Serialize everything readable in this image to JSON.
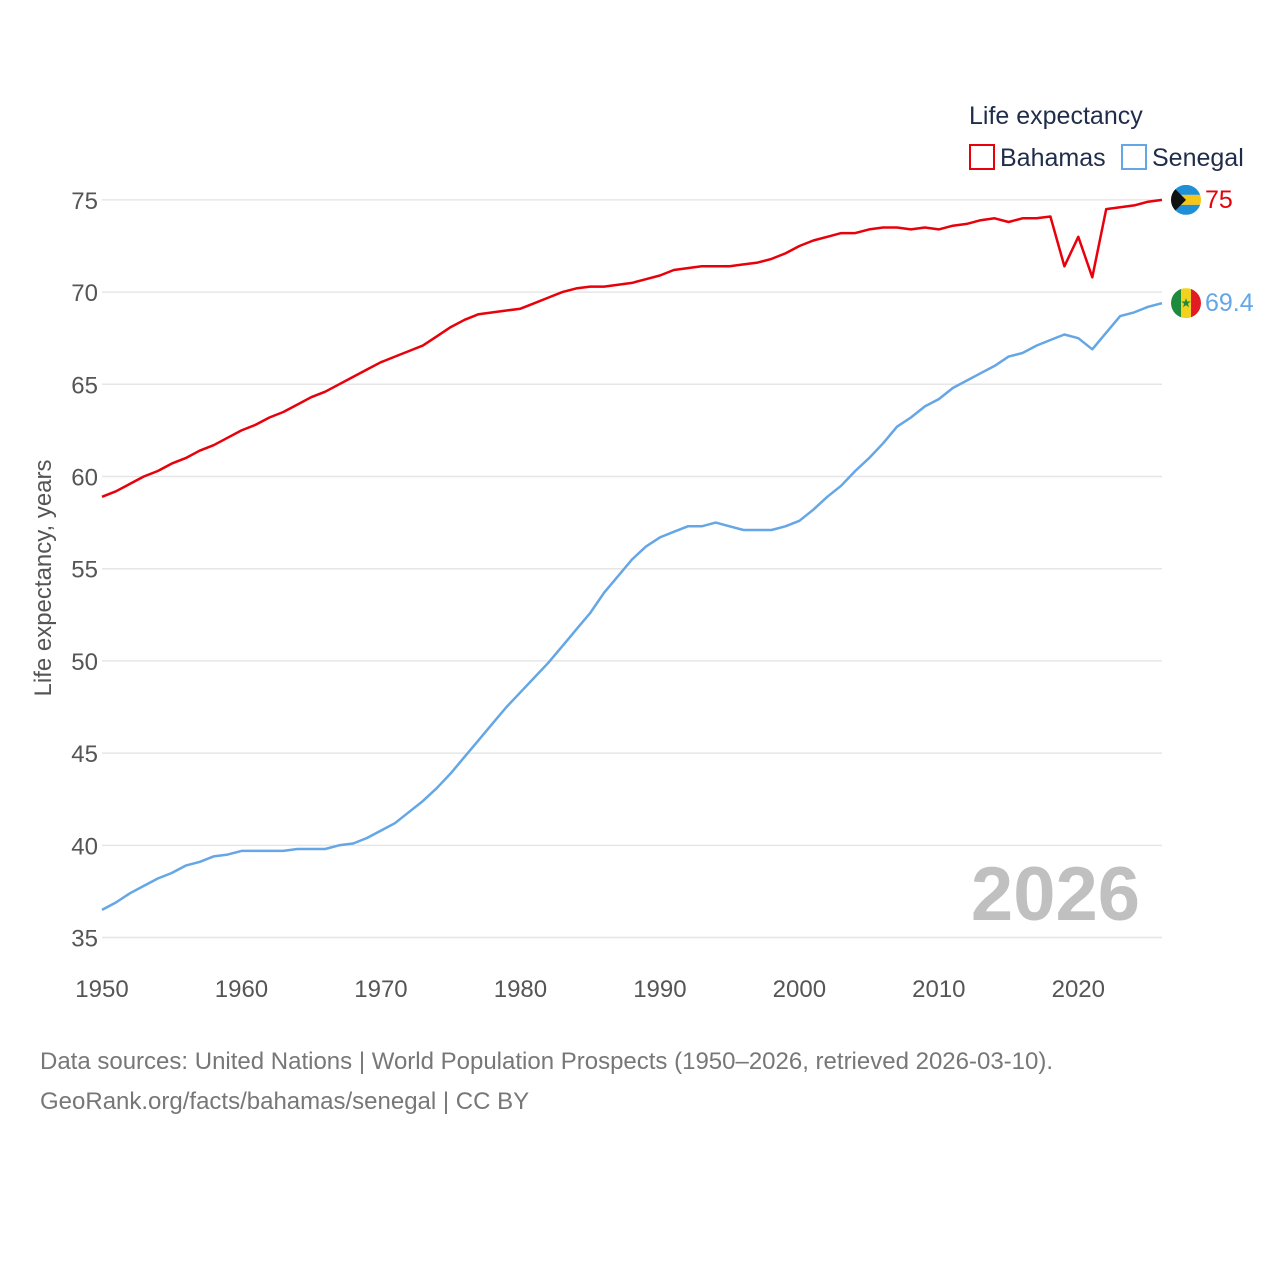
{
  "chart_data": {
    "type": "line",
    "title": "Life expectancy",
    "xlabel": "",
    "ylabel": "Life expectancy, years",
    "xlim": [
      1950,
      2026
    ],
    "ylim": [
      34,
      77
    ],
    "yticks": [
      35,
      40,
      45,
      50,
      55,
      60,
      65,
      70,
      75
    ],
    "xticks": [
      1950,
      1960,
      1970,
      1980,
      1990,
      2000,
      2010,
      2020
    ],
    "current_year": "2026",
    "legend_position": "top-right",
    "x": [
      1950,
      1951,
      1952,
      1953,
      1954,
      1955,
      1956,
      1957,
      1958,
      1959,
      1960,
      1961,
      1962,
      1963,
      1964,
      1965,
      1966,
      1967,
      1968,
      1969,
      1970,
      1971,
      1972,
      1973,
      1974,
      1975,
      1976,
      1977,
      1978,
      1979,
      1980,
      1981,
      1982,
      1983,
      1984,
      1985,
      1986,
      1987,
      1988,
      1989,
      1990,
      1991,
      1992,
      1993,
      1994,
      1995,
      1996,
      1997,
      1998,
      1999,
      2000,
      2001,
      2002,
      2003,
      2004,
      2005,
      2006,
      2007,
      2008,
      2009,
      2010,
      2011,
      2012,
      2013,
      2014,
      2015,
      2016,
      2017,
      2018,
      2019,
      2020,
      2021,
      2022,
      2023,
      2024,
      2025,
      2026
    ],
    "series": [
      {
        "name": "Bahamas",
        "color": "#e8000b",
        "end_label": "75",
        "flag": "bahamas-flag-icon",
        "values": [
          58.9,
          59.2,
          59.6,
          60.0,
          60.3,
          60.7,
          61.0,
          61.4,
          61.7,
          62.1,
          62.5,
          62.8,
          63.2,
          63.5,
          63.9,
          64.3,
          64.6,
          65.0,
          65.4,
          65.8,
          66.2,
          66.5,
          66.8,
          67.1,
          67.6,
          68.1,
          68.5,
          68.8,
          68.9,
          69.0,
          69.1,
          69.4,
          69.7,
          70.0,
          70.2,
          70.3,
          70.3,
          70.4,
          70.5,
          70.7,
          70.9,
          71.2,
          71.3,
          71.4,
          71.4,
          71.4,
          71.5,
          71.6,
          71.8,
          72.1,
          72.5,
          72.8,
          73.0,
          73.2,
          73.2,
          73.4,
          73.5,
          73.5,
          73.4,
          73.5,
          73.4,
          73.6,
          73.7,
          73.9,
          74.0,
          73.8,
          74.0,
          74.0,
          74.1,
          71.4,
          73.0,
          70.8,
          74.5,
          74.6,
          74.7,
          74.9,
          75.0
        ]
      },
      {
        "name": "Senegal",
        "color": "#64a6e6",
        "end_label": "69.4",
        "flag": "senegal-flag-icon",
        "values": [
          36.5,
          36.9,
          37.4,
          37.8,
          38.2,
          38.5,
          38.9,
          39.1,
          39.4,
          39.5,
          39.7,
          39.7,
          39.7,
          39.7,
          39.8,
          39.8,
          39.8,
          40.0,
          40.1,
          40.4,
          40.8,
          41.2,
          41.8,
          42.4,
          43.1,
          43.9,
          44.8,
          45.7,
          46.6,
          47.5,
          48.3,
          49.1,
          49.9,
          50.8,
          51.7,
          52.6,
          53.7,
          54.6,
          55.5,
          56.2,
          56.7,
          57.0,
          57.3,
          57.3,
          57.5,
          57.3,
          57.1,
          57.1,
          57.1,
          57.3,
          57.6,
          58.2,
          58.9,
          59.5,
          60.3,
          61.0,
          61.8,
          62.7,
          63.2,
          63.8,
          64.2,
          64.8,
          65.2,
          65.6,
          66.0,
          66.5,
          66.7,
          67.1,
          67.4,
          67.7,
          67.5,
          66.9,
          67.8,
          68.7,
          68.9,
          69.2,
          69.4
        ]
      }
    ]
  },
  "footer": {
    "line1": "Data sources: United Nations | World Population Prospects (1950–2026, retrieved 2026-03-10).",
    "line2": "GeoRank.org/facts/bahamas/senegal | CC BY"
  }
}
